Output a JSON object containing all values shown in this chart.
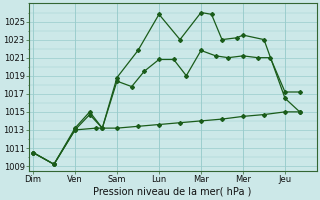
{
  "xlabel": "Pression niveau de la mer( hPa )",
  "days": [
    "Dim",
    "Ven",
    "Sam",
    "Lun",
    "Mar",
    "Mer",
    "Jeu"
  ],
  "day_positions": [
    0,
    2,
    4,
    6,
    8,
    10,
    12
  ],
  "xlim": [
    -0.2,
    13.5
  ],
  "ylim": [
    1008.5,
    1027.0
  ],
  "yticks": [
    1009,
    1011,
    1013,
    1015,
    1017,
    1019,
    1021,
    1023,
    1025
  ],
  "bg_color": "#cce8e8",
  "grid_color": "#99cccc",
  "line_color": "#1a5c1a",
  "line1_x": [
    0,
    1,
    2,
    2.7,
    3.3,
    4,
    4.7,
    5.3,
    6,
    6.7,
    7.3,
    8,
    8.7,
    9.3,
    10,
    10.7,
    11.3,
    12,
    12.7
  ],
  "line1_y": [
    1010.5,
    1009.2,
    1013.0,
    1014.7,
    1013.2,
    1018.4,
    1017.8,
    1019.5,
    1020.8,
    1020.8,
    1019.0,
    1021.8,
    1021.2,
    1021.0,
    1021.2,
    1021.0,
    1021.0,
    1017.2,
    1017.2
  ],
  "line2_x": [
    0,
    1,
    2,
    2.7,
    3.3,
    4,
    5,
    6,
    7,
    8,
    8.5,
    9,
    9.7,
    10,
    11,
    12,
    12.7
  ],
  "line2_y": [
    1010.5,
    1009.2,
    1013.2,
    1015.0,
    1013.2,
    1018.8,
    1021.8,
    1025.8,
    1023.0,
    1026.0,
    1025.8,
    1023.0,
    1023.2,
    1023.5,
    1023.0,
    1016.5,
    1015.0
  ],
  "line3_x": [
    0,
    1,
    2,
    3,
    4,
    5,
    6,
    7,
    8,
    9,
    10,
    11,
    12,
    12.7
  ],
  "line3_y": [
    1010.5,
    1009.2,
    1013.0,
    1013.2,
    1013.2,
    1013.4,
    1013.6,
    1013.8,
    1014.0,
    1014.2,
    1014.5,
    1014.7,
    1015.0,
    1015.0
  ],
  "markersize": 2.0,
  "linewidth": 0.9,
  "xlabel_fontsize": 7.0,
  "tick_fontsize": 6.0
}
